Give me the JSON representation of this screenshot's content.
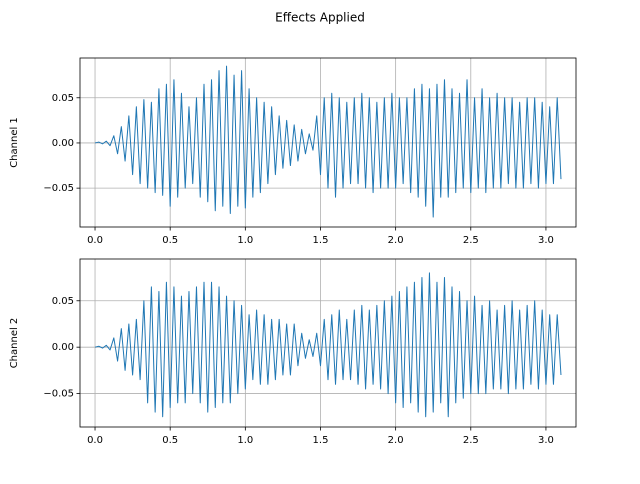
{
  "title": "Effects Applied",
  "chart_data": [
    {
      "type": "line",
      "ylabel": "Channel 1",
      "color": "#1f77b4",
      "grid": true,
      "xlim": [
        -0.1,
        3.2
      ],
      "ylim": [
        -0.093,
        0.094
      ],
      "xticks": [
        {
          "value": 0,
          "label": "0.0"
        },
        {
          "value": 0.5,
          "label": "0.5"
        },
        {
          "value": 1,
          "label": "1.0"
        },
        {
          "value": 1.5,
          "label": "1.5"
        },
        {
          "value": 2,
          "label": "2.0"
        },
        {
          "value": 2.5,
          "label": "2.5"
        },
        {
          "value": 3,
          "label": "3.0"
        }
      ],
      "yticks": [
        {
          "value": -0.05,
          "label": "−0.05"
        },
        {
          "value": 0,
          "label": "0.00"
        },
        {
          "value": 0.05,
          "label": "0.05"
        }
      ],
      "x": [
        0,
        0.025,
        0.05,
        0.075,
        0.1,
        0.125,
        0.15,
        0.175,
        0.2,
        0.225,
        0.25,
        0.275,
        0.3,
        0.325,
        0.35,
        0.375,
        0.4,
        0.425,
        0.45,
        0.475,
        0.5,
        0.525,
        0.55,
        0.575,
        0.6,
        0.625,
        0.65,
        0.675,
        0.7,
        0.725,
        0.75,
        0.775,
        0.8,
        0.825,
        0.85,
        0.875,
        0.9,
        0.925,
        0.95,
        0.975,
        1,
        1.025,
        1.05,
        1.075,
        1.1,
        1.125,
        1.15,
        1.175,
        1.2,
        1.225,
        1.25,
        1.275,
        1.3,
        1.325,
        1.35,
        1.375,
        1.4,
        1.425,
        1.45,
        1.475,
        1.5,
        1.525,
        1.55,
        1.575,
        1.6,
        1.625,
        1.65,
        1.675,
        1.7,
        1.725,
        1.75,
        1.775,
        1.8,
        1.825,
        1.85,
        1.875,
        1.9,
        1.925,
        1.95,
        1.975,
        2,
        2.025,
        2.05,
        2.075,
        2.1,
        2.125,
        2.15,
        2.175,
        2.2,
        2.225,
        2.25,
        2.275,
        2.3,
        2.325,
        2.35,
        2.375,
        2.4,
        2.425,
        2.45,
        2.475,
        2.5,
        2.525,
        2.55,
        2.575,
        2.6,
        2.625,
        2.65,
        2.675,
        2.7,
        2.725,
        2.75,
        2.775,
        2.8,
        2.825,
        2.85,
        2.875,
        2.9,
        2.925,
        2.95,
        2.975,
        3,
        3.025,
        3.05,
        3.075,
        3.1
      ],
      "values": [
        0,
        0.001,
        -0.001,
        0.002,
        -0.003,
        0.008,
        -0.012,
        0.018,
        -0.02,
        0.03,
        -0.035,
        0.04,
        -0.045,
        0.048,
        -0.05,
        0.045,
        -0.055,
        0.06,
        -0.058,
        0.065,
        -0.07,
        0.07,
        -0.06,
        0.055,
        -0.05,
        0.04,
        -0.045,
        0.05,
        -0.06,
        0.065,
        -0.065,
        0.07,
        -0.075,
        0.08,
        -0.07,
        0.085,
        -0.078,
        0.075,
        -0.07,
        0.08,
        -0.072,
        0.06,
        -0.06,
        0.05,
        -0.055,
        0.045,
        -0.045,
        0.04,
        -0.035,
        0.03,
        -0.028,
        0.025,
        -0.025,
        0.02,
        -0.02,
        0.015,
        -0.012,
        0.01,
        -0.008,
        0.03,
        -0.035,
        0.05,
        -0.05,
        0.055,
        -0.06,
        0.05,
        -0.05,
        0.045,
        -0.045,
        0.05,
        -0.045,
        0.055,
        -0.05,
        0.05,
        -0.055,
        0.045,
        -0.05,
        0.05,
        -0.05,
        0.055,
        -0.05,
        0.05,
        -0.045,
        0.05,
        -0.055,
        0.06,
        -0.06,
        0.065,
        -0.07,
        0.06,
        -0.082,
        0.065,
        -0.06,
        0.07,
        -0.06,
        0.06,
        -0.055,
        0.055,
        -0.05,
        0.07,
        -0.055,
        0.05,
        -0.05,
        0.06,
        -0.055,
        0.05,
        -0.05,
        0.055,
        -0.05,
        0.05,
        -0.045,
        0.05,
        -0.05,
        0.045,
        -0.05,
        0.05,
        -0.045,
        0.05,
        -0.05,
        0.045,
        -0.045,
        0.04,
        -0.045,
        0.05,
        -0.04
      ]
    },
    {
      "type": "line",
      "ylabel": "Channel 2",
      "color": "#1f77b4",
      "grid": true,
      "xlim": [
        -0.1,
        3.2
      ],
      "ylim": [
        -0.086,
        0.095
      ],
      "xticks": [
        {
          "value": 0,
          "label": "0.0"
        },
        {
          "value": 0.5,
          "label": "0.5"
        },
        {
          "value": 1,
          "label": "1.0"
        },
        {
          "value": 1.5,
          "label": "1.5"
        },
        {
          "value": 2,
          "label": "2.0"
        },
        {
          "value": 2.5,
          "label": "2.5"
        },
        {
          "value": 3,
          "label": "3.0"
        }
      ],
      "yticks": [
        {
          "value": -0.05,
          "label": "−0.05"
        },
        {
          "value": 0,
          "label": "0.00"
        },
        {
          "value": 0.05,
          "label": "0.05"
        }
      ],
      "x": [
        0,
        0.025,
        0.05,
        0.075,
        0.1,
        0.125,
        0.15,
        0.175,
        0.2,
        0.225,
        0.25,
        0.275,
        0.3,
        0.325,
        0.35,
        0.375,
        0.4,
        0.425,
        0.45,
        0.475,
        0.5,
        0.525,
        0.55,
        0.575,
        0.6,
        0.625,
        0.65,
        0.675,
        0.7,
        0.725,
        0.75,
        0.775,
        0.8,
        0.825,
        0.85,
        0.875,
        0.9,
        0.925,
        0.95,
        0.975,
        1,
        1.025,
        1.05,
        1.075,
        1.1,
        1.125,
        1.15,
        1.175,
        1.2,
        1.225,
        1.25,
        1.275,
        1.3,
        1.325,
        1.35,
        1.375,
        1.4,
        1.425,
        1.45,
        1.475,
        1.5,
        1.525,
        1.55,
        1.575,
        1.6,
        1.625,
        1.65,
        1.675,
        1.7,
        1.725,
        1.75,
        1.775,
        1.8,
        1.825,
        1.85,
        1.875,
        1.9,
        1.925,
        1.95,
        1.975,
        2,
        2.025,
        2.05,
        2.075,
        2.1,
        2.125,
        2.15,
        2.175,
        2.2,
        2.225,
        2.25,
        2.275,
        2.3,
        2.325,
        2.35,
        2.375,
        2.4,
        2.425,
        2.45,
        2.475,
        2.5,
        2.525,
        2.55,
        2.575,
        2.6,
        2.625,
        2.65,
        2.675,
        2.7,
        2.725,
        2.75,
        2.775,
        2.8,
        2.825,
        2.85,
        2.875,
        2.9,
        2.925,
        2.95,
        2.975,
        3,
        3.025,
        3.05,
        3.075,
        3.1
      ],
      "values": [
        0,
        0.001,
        -0.001,
        0.002,
        -0.003,
        0.01,
        -0.015,
        0.02,
        -0.025,
        0.025,
        -0.03,
        0.03,
        -0.035,
        0.05,
        -0.06,
        0.065,
        -0.07,
        0.06,
        -0.075,
        0.07,
        -0.065,
        0.065,
        -0.06,
        0.055,
        -0.06,
        0.06,
        -0.05,
        0.065,
        -0.06,
        0.07,
        -0.07,
        0.07,
        -0.065,
        0.065,
        -0.06,
        0.055,
        -0.06,
        0.05,
        -0.05,
        0.045,
        -0.045,
        0.035,
        -0.035,
        0.04,
        -0.04,
        0.035,
        -0.04,
        0.03,
        -0.035,
        0.03,
        -0.03,
        0.025,
        -0.03,
        0.025,
        -0.02,
        0.015,
        -0.012,
        0.008,
        -0.01,
        0.015,
        -0.02,
        0.03,
        -0.035,
        0.035,
        -0.04,
        0.04,
        -0.035,
        0.03,
        -0.035,
        0.04,
        -0.04,
        0.045,
        -0.045,
        0.04,
        -0.04,
        0.045,
        -0.045,
        0.05,
        -0.05,
        0.055,
        -0.06,
        0.06,
        -0.065,
        0.065,
        -0.06,
        0.07,
        -0.07,
        0.075,
        -0.075,
        0.08,
        -0.07,
        0.07,
        -0.06,
        0.075,
        -0.075,
        0.065,
        -0.06,
        0.06,
        -0.055,
        0.05,
        -0.05,
        0.055,
        -0.05,
        0.045,
        -0.05,
        0.05,
        -0.045,
        0.04,
        -0.045,
        0.045,
        -0.05,
        0.05,
        -0.045,
        0.04,
        -0.045,
        0.045,
        -0.04,
        0.05,
        -0.045,
        0.04,
        -0.04,
        0.035,
        -0.04,
        0.035,
        -0.03
      ]
    }
  ]
}
